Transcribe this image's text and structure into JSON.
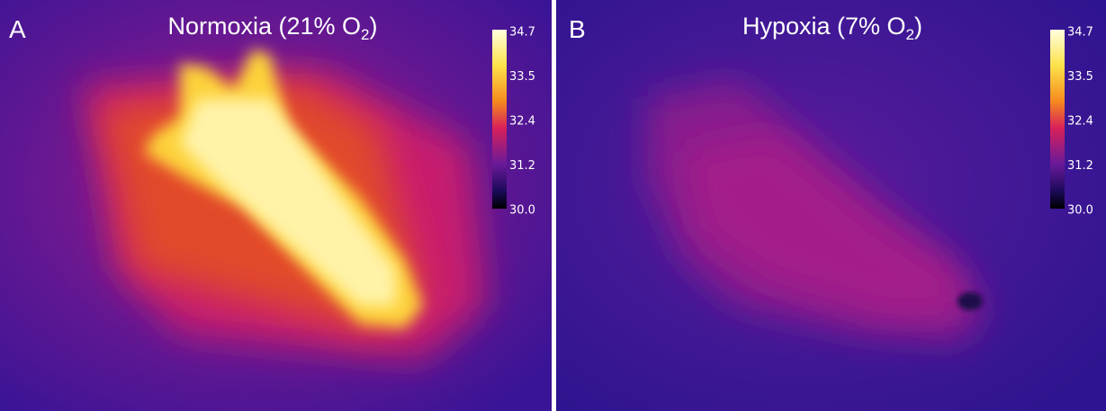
{
  "panels": [
    {
      "label": "A",
      "title_parts": [
        "Normoxia (21% O",
        "2",
        ")"
      ],
      "colorbar": {
        "ticks": [
          "34.7",
          "33.5",
          "32.4",
          "31.2",
          "30.0"
        ]
      }
    },
    {
      "label": "B",
      "title_parts": [
        "Hypoxia (7% O",
        "2",
        ")"
      ],
      "colorbar": {
        "ticks": [
          "34.7",
          "33.5",
          "32.4",
          "31.2",
          "30.0"
        ]
      }
    }
  ]
}
